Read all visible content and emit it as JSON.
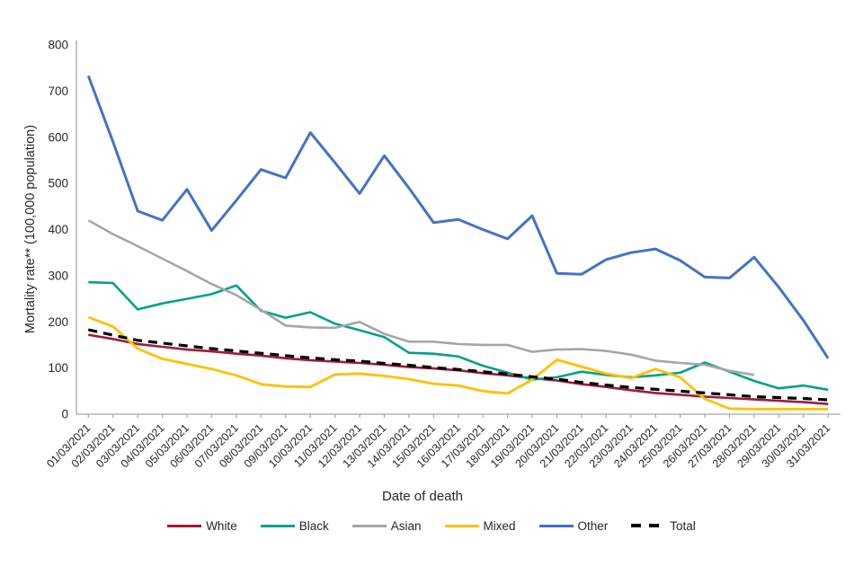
{
  "chart_data": {
    "type": "line",
    "title": "",
    "ylabel": "Mortality rate** (100,000 population)",
    "xlabel": "Date of death",
    "ylim": [
      0,
      800
    ],
    "yticks": [
      0,
      100,
      200,
      300,
      400,
      500,
      600,
      700,
      800
    ],
    "grid": false,
    "legend_position": "bottom",
    "x_labels": [
      "01/03/2021",
      "02/03/2021",
      "03/03/2021",
      "04/03/2021",
      "05/03/2021",
      "06/03/2021",
      "07/03/2021",
      "08/03/2021",
      "09/03/2021",
      "10/03/2021",
      "11/03/2021",
      "12/03/2021",
      "13/03/2021",
      "14/03/2021",
      "15/03/2021",
      "16/03/2021",
      "17/03/2021",
      "18/03/2021",
      "19/03/2021",
      "20/03/2021",
      "21/03/2021",
      "22/03/2021",
      "23/03/2021",
      "24/03/2021",
      "25/03/2021",
      "26/03/2021",
      "27/03/2021",
      "28/03/2021",
      "29/03/2021",
      "30/03/2021",
      "31/03/2021"
    ],
    "series": [
      {
        "name": "White",
        "color": "#9E1B3C",
        "dash": false,
        "width": 2.6,
        "values": [
          172,
          163,
          152,
          146,
          140,
          136,
          131,
          127,
          121,
          117,
          114,
          111,
          107,
          102,
          99,
          95,
          89,
          84,
          78,
          73,
          65,
          59,
          52,
          46,
          42,
          38,
          35,
          32,
          29,
          26,
          22
        ]
      },
      {
        "name": "Black",
        "color": "#00A18A",
        "dash": false,
        "width": 2.6,
        "values": [
          286,
          284,
          227,
          240,
          250,
          260,
          279,
          224,
          209,
          221,
          196,
          182,
          167,
          133,
          131,
          125,
          105,
          90,
          75,
          80,
          92,
          85,
          80,
          84,
          90,
          112,
          92,
          72,
          56,
          62,
          53
        ]
      },
      {
        "name": "Asian",
        "color": "#A6A6A6",
        "dash": false,
        "width": 2.6,
        "values": [
          420,
          390,
          364,
          337,
          310,
          282,
          258,
          226,
          192,
          188,
          187,
          200,
          174,
          157,
          157,
          152,
          150,
          150,
          135,
          140,
          141,
          137,
          129,
          116,
          111,
          107,
          94,
          85,
          null,
          null,
          null
        ]
      },
      {
        "name": "Mixed",
        "color": "#FFC000",
        "dash": false,
        "width": 2.8,
        "values": [
          210,
          190,
          142,
          120,
          109,
          98,
          84,
          65,
          60,
          59,
          86,
          88,
          83,
          76,
          66,
          62,
          50,
          45,
          75,
          118,
          103,
          88,
          78,
          98,
          80,
          33,
          12,
          11,
          11,
          11,
          11
        ]
      },
      {
        "name": "Other",
        "color": "#4472C4",
        "dash": false,
        "width": 3,
        "values": [
          733,
          590,
          440,
          420,
          487,
          398,
          463,
          530,
          512,
          610,
          545,
          478,
          560,
          490,
          415,
          422,
          400,
          380,
          430,
          305,
          303,
          335,
          350,
          358,
          333,
          297,
          295,
          340,
          275,
          203,
          121
        ]
      },
      {
        "name": "Total",
        "color": "#000000",
        "dash": true,
        "width": 3.2,
        "values": [
          183,
          171,
          160,
          154,
          148,
          142,
          137,
          132,
          127,
          122,
          118,
          115,
          110,
          106,
          101,
          97,
          92,
          87,
          81,
          76,
          69,
          63,
          58,
          54,
          50,
          46,
          42,
          38,
          36,
          34,
          31
        ]
      }
    ],
    "axis_color": "#A6A6A6",
    "tick_text_color": "#262626"
  }
}
